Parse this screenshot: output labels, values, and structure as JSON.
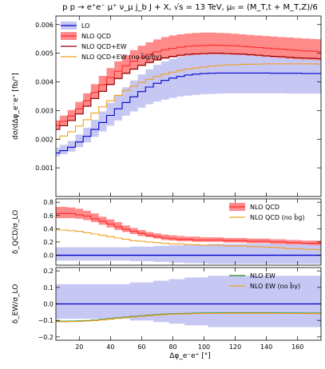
{
  "chart_data": {
    "type": "line",
    "title": "p p → e⁺e⁻ μ⁺ ν_μ j_b J + X, √s = 13 TeV, μ₀ = (M_T,t + M_T,Z)/6",
    "xlabel": "Δφ_e⁻e⁺ [°]",
    "x": [
      5,
      10,
      15,
      20,
      25,
      30,
      35,
      40,
      45,
      50,
      55,
      60,
      65,
      70,
      75,
      80,
      85,
      90,
      95,
      100,
      105,
      110,
      115,
      120,
      125,
      130,
      135,
      140,
      145,
      150,
      155,
      160,
      165,
      170,
      175
    ],
    "xlim": [
      5,
      175
    ],
    "xticks": [
      20,
      40,
      60,
      80,
      100,
      120,
      140,
      160
    ],
    "panels": [
      {
        "ylabel": "dσ/dΔφ_e⁻e⁺ [fb/°]",
        "ylim": [
          0,
          0.0063
        ],
        "yticks": [
          0.001,
          0.002,
          0.003,
          0.004,
          0.005,
          0.006
        ],
        "ytick_labels": [
          "0.001",
          "0.002",
          "0.003",
          "0.004",
          "0.005",
          "0.006"
        ],
        "legend_position": "top-left",
        "series": [
          {
            "name": "LO",
            "color": "#0000cc",
            "values": [
              0.00152,
              0.0016,
              0.00172,
              0.0019,
              0.0021,
              0.00234,
              0.00258,
              0.00283,
              0.00306,
              0.00328,
              0.00348,
              0.00366,
              0.00382,
              0.00395,
              0.00405,
              0.00413,
              0.00419,
              0.00424,
              0.00427,
              0.00429,
              0.0043,
              0.00431,
              0.00431,
              0.00431,
              0.00431,
              0.00431,
              0.00431,
              0.00431,
              0.0043,
              0.0043,
              0.0043,
              0.0043,
              0.00429,
              0.00429,
              0.00429
            ],
            "band_low": [
              0.0014,
              0.00147,
              0.00157,
              0.00172,
              0.00189,
              0.00208,
              0.00227,
              0.00247,
              0.00265,
              0.00282,
              0.00297,
              0.0031,
              0.00322,
              0.00331,
              0.00338,
              0.00344,
              0.00349,
              0.00352,
              0.00355,
              0.00357,
              0.00358,
              0.00359,
              0.0036,
              0.0036,
              0.0036,
              0.0036,
              0.0036,
              0.0036,
              0.0036,
              0.0036,
              0.00359,
              0.00359,
              0.00359,
              0.00359,
              0.00359
            ],
            "band_high": [
              0.0017,
              0.0018,
              0.00194,
              0.00216,
              0.0024,
              0.00268,
              0.00297,
              0.00327,
              0.00355,
              0.00381,
              0.00405,
              0.00426,
              0.00444,
              0.00459,
              0.00471,
              0.0048,
              0.00487,
              0.00492,
              0.00496,
              0.00499,
              0.00501,
              0.00502,
              0.00503,
              0.00503,
              0.00503,
              0.00503,
              0.00503,
              0.00503,
              0.00502,
              0.00502,
              0.00502,
              0.00501,
              0.00501,
              0.00501,
              0.00501
            ]
          },
          {
            "name": "NLO QCD",
            "color": "#ff2a2a",
            "values": [
              0.00248,
              0.00262,
              0.00281,
              0.00306,
              0.00334,
              0.00363,
              0.0039,
              0.00415,
              0.00437,
              0.00456,
              0.00472,
              0.00485,
              0.00496,
              0.00505,
              0.00512,
              0.00517,
              0.00521,
              0.00524,
              0.00526,
              0.00527,
              0.00528,
              0.00528,
              0.00527,
              0.00526,
              0.00524,
              0.00522,
              0.0052,
              0.00518,
              0.00516,
              0.00514,
              0.00512,
              0.0051,
              0.00508,
              0.00507,
              0.00506
            ],
            "band_low": [
              0.00233,
              0.00247,
              0.00264,
              0.00287,
              0.00313,
              0.0034,
              0.00365,
              0.00388,
              0.00409,
              0.00427,
              0.00442,
              0.00455,
              0.00465,
              0.00474,
              0.0048,
              0.00485,
              0.00489,
              0.00492,
              0.00494,
              0.00495,
              0.00496,
              0.00496,
              0.00495,
              0.00494,
              0.00493,
              0.00491,
              0.00489,
              0.00487,
              0.00485,
              0.00483,
              0.00481,
              0.00479,
              0.00477,
              0.00476,
              0.00475
            ],
            "band_high": [
              0.00266,
              0.00282,
              0.00302,
              0.0033,
              0.0036,
              0.00392,
              0.00421,
              0.00448,
              0.00472,
              0.00493,
              0.00511,
              0.00526,
              0.00538,
              0.00548,
              0.00556,
              0.00562,
              0.00566,
              0.00569,
              0.00571,
              0.00572,
              0.00572,
              0.00571,
              0.0057,
              0.00568,
              0.00566,
              0.00564,
              0.00562,
              0.0056,
              0.00558,
              0.00556,
              0.00555,
              0.00553,
              0.00551,
              0.0055,
              0.00549
            ]
          },
          {
            "name": "NLO QCD+EW",
            "color": "#8b0000",
            "values": [
              0.00234,
              0.00247,
              0.00265,
              0.00288,
              0.00315,
              0.00342,
              0.00367,
              0.00391,
              0.00412,
              0.0043,
              0.00445,
              0.00458,
              0.00468,
              0.00477,
              0.00484,
              0.00489,
              0.00493,
              0.00496,
              0.00498,
              0.00499,
              0.005,
              0.005,
              0.00499,
              0.00498,
              0.00497,
              0.00495,
              0.00493,
              0.00491,
              0.00489,
              0.00488,
              0.00486,
              0.00484,
              0.00483,
              0.00482,
              0.00481
            ]
          },
          {
            "name": "NLO QCD+EW (no b̃g/b̃γ)",
            "color": "#f0a020",
            "values": [
              0.002,
              0.00211,
              0.00226,
              0.00246,
              0.00268,
              0.00291,
              0.00313,
              0.00334,
              0.00353,
              0.0037,
              0.00385,
              0.00398,
              0.00409,
              0.00419,
              0.00427,
              0.00434,
              0.0044,
              0.00445,
              0.00449,
              0.00452,
              0.00455,
              0.00457,
              0.00459,
              0.0046,
              0.00461,
              0.00462,
              0.00462,
              0.00463,
              0.00463,
              0.00463,
              0.00463,
              0.00463,
              0.00463,
              0.00463,
              0.00462
            ]
          }
        ]
      },
      {
        "ylabel": "δ_QCD/σ_LO",
        "ylim": [
          -0.15,
          0.85
        ],
        "yticks": [
          0.0,
          0.2,
          0.4,
          0.6,
          0.8
        ],
        "ytick_labels": [
          "0.0",
          "0.2",
          "0.4",
          "0.6",
          "0.8"
        ],
        "legend_position": "top-right",
        "reference": {
          "name": "LO",
          "color": "#0000cc",
          "band_low": [
            -0.08,
            -0.08,
            -0.08,
            -0.08,
            -0.08,
            -0.08,
            -0.08,
            -0.08,
            -0.08,
            -0.08,
            -0.09,
            -0.09,
            -0.09,
            -0.1,
            -0.1,
            -0.11,
            -0.11,
            -0.12,
            -0.12,
            -0.12,
            -0.13,
            -0.13,
            -0.13,
            -0.13,
            -0.13,
            -0.13,
            -0.13,
            -0.13,
            -0.13,
            -0.13,
            -0.13,
            -0.13,
            -0.13,
            -0.13,
            -0.13
          ],
          "band_high": [
            0.12,
            0.12,
            0.12,
            0.12,
            0.12,
            0.12,
            0.12,
            0.12,
            0.12,
            0.12,
            0.13,
            0.13,
            0.13,
            0.14,
            0.14,
            0.15,
            0.15,
            0.16,
            0.16,
            0.16,
            0.17,
            0.17,
            0.17,
            0.17,
            0.17,
            0.17,
            0.17,
            0.17,
            0.17,
            0.17,
            0.17,
            0.17,
            0.17,
            0.17,
            0.17
          ]
        },
        "series": [
          {
            "name": "NLO QCD",
            "color": "#ff2a2a",
            "values": [
              0.63,
              0.63,
              0.63,
              0.61,
              0.59,
              0.55,
              0.51,
              0.47,
              0.43,
              0.39,
              0.36,
              0.33,
              0.3,
              0.28,
              0.26,
              0.25,
              0.24,
              0.24,
              0.23,
              0.23,
              0.23,
              0.23,
              0.22,
              0.22,
              0.22,
              0.21,
              0.21,
              0.21,
              0.2,
              0.2,
              0.19,
              0.19,
              0.18,
              0.18,
              0.18
            ],
            "band_low": [
              0.56,
              0.56,
              0.56,
              0.55,
              0.53,
              0.5,
              0.46,
              0.42,
              0.38,
              0.35,
              0.32,
              0.29,
              0.27,
              0.25,
              0.23,
              0.22,
              0.21,
              0.21,
              0.2,
              0.2,
              0.2,
              0.2,
              0.19,
              0.19,
              0.19,
              0.18,
              0.18,
              0.18,
              0.17,
              0.17,
              0.16,
              0.16,
              0.16,
              0.15,
              0.15
            ],
            "band_high": [
              0.73,
              0.73,
              0.72,
              0.7,
              0.67,
              0.63,
              0.58,
              0.54,
              0.5,
              0.45,
              0.41,
              0.38,
              0.35,
              0.33,
              0.31,
              0.3,
              0.29,
              0.28,
              0.28,
              0.27,
              0.27,
              0.27,
              0.26,
              0.26,
              0.26,
              0.25,
              0.25,
              0.25,
              0.24,
              0.24,
              0.23,
              0.23,
              0.22,
              0.22,
              0.22
            ]
          },
          {
            "name": "NLO QCD (no b̃g)",
            "color": "#f0a020",
            "values": [
              0.38,
              0.38,
              0.37,
              0.36,
              0.34,
              0.32,
              0.3,
              0.28,
              0.26,
              0.24,
              0.22,
              0.21,
              0.2,
              0.19,
              0.18,
              0.17,
              0.17,
              0.16,
              0.16,
              0.15,
              0.15,
              0.15,
              0.14,
              0.14,
              0.14,
              0.13,
              0.13,
              0.12,
              0.12,
              0.11,
              0.1,
              0.1,
              0.09,
              0.09,
              0.08
            ]
          }
        ]
      },
      {
        "ylabel": "δ_EW/σ_LO",
        "ylim": [
          -0.22,
          0.22
        ],
        "yticks": [
          -0.2,
          -0.1,
          0.0,
          0.1,
          0.2
        ],
        "ytick_labels": [
          "−0.2",
          "−0.1",
          "0.0",
          "0.1",
          "0.2"
        ],
        "legend_position": "top-right",
        "reference": {
          "name": "LO",
          "color": "#0000cc",
          "band_low": [
            -0.09,
            -0.09,
            -0.09,
            -0.09,
            -0.09,
            -0.09,
            -0.09,
            -0.09,
            -0.09,
            -0.09,
            -0.1,
            -0.1,
            -0.1,
            -0.11,
            -0.11,
            -0.12,
            -0.12,
            -0.13,
            -0.13,
            -0.13,
            -0.14,
            -0.14,
            -0.14,
            -0.14,
            -0.14,
            -0.14,
            -0.14,
            -0.14,
            -0.14,
            -0.14,
            -0.14,
            -0.14,
            -0.14,
            -0.14,
            -0.14
          ],
          "band_high": [
            0.12,
            0.12,
            0.12,
            0.12,
            0.12,
            0.12,
            0.12,
            0.12,
            0.12,
            0.12,
            0.13,
            0.13,
            0.13,
            0.14,
            0.14,
            0.15,
            0.15,
            0.16,
            0.16,
            0.16,
            0.17,
            0.17,
            0.17,
            0.17,
            0.17,
            0.17,
            0.17,
            0.17,
            0.17,
            0.17,
            0.17,
            0.17,
            0.17,
            0.17,
            0.17
          ]
        },
        "series": [
          {
            "name": "NLO EW",
            "color": "#228b22",
            "values": [
              -0.105,
              -0.105,
              -0.104,
              -0.103,
              -0.101,
              -0.098,
              -0.094,
              -0.09,
              -0.085,
              -0.08,
              -0.076,
              -0.072,
              -0.068,
              -0.065,
              -0.062,
              -0.06,
              -0.058,
              -0.057,
              -0.056,
              -0.055,
              -0.055,
              -0.054,
              -0.054,
              -0.054,
              -0.054,
              -0.054,
              -0.054,
              -0.054,
              -0.054,
              -0.055,
              -0.055,
              -0.055,
              -0.056,
              -0.056,
              -0.056
            ]
          },
          {
            "name": "NLO EW (no b̃γ)",
            "color": "#f0a020",
            "values": [
              -0.108,
              -0.108,
              -0.107,
              -0.106,
              -0.104,
              -0.101,
              -0.097,
              -0.093,
              -0.088,
              -0.083,
              -0.079,
              -0.075,
              -0.071,
              -0.068,
              -0.065,
              -0.063,
              -0.061,
              -0.06,
              -0.059,
              -0.058,
              -0.058,
              -0.057,
              -0.057,
              -0.057,
              -0.057,
              -0.057,
              -0.057,
              -0.057,
              -0.057,
              -0.058,
              -0.058,
              -0.058,
              -0.059,
              -0.059,
              -0.059
            ]
          }
        ]
      }
    ]
  }
}
